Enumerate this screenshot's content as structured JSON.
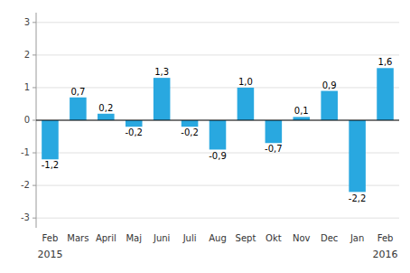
{
  "chart_data": {
    "type": "bar",
    "categories": [
      "Feb",
      "Mars",
      "April",
      "Maj",
      "Juni",
      "Juli",
      "Aug",
      "Sept",
      "Okt",
      "Nov",
      "Dec",
      "Jan",
      "Feb"
    ],
    "values": [
      -1.2,
      0.7,
      0.2,
      -0.2,
      1.3,
      -0.2,
      -0.9,
      1.0,
      -0.7,
      0.1,
      0.9,
      -2.2,
      1.6
    ],
    "value_labels": [
      "-1,2",
      "0,7",
      "0,2",
      "-0,2",
      "1,3",
      "-0,2",
      "-0,9",
      "1,0",
      "-0,7",
      "0,1",
      "0,9",
      "-2,2",
      "1,6"
    ],
    "data_labels": true,
    "color": "#29A8E0",
    "ylim": [
      -3.3,
      3.3
    ],
    "yticks": [
      -3,
      -2,
      -1,
      0,
      1,
      2,
      3
    ],
    "grid": true,
    "annotations": [
      "2015",
      "2016"
    ]
  }
}
